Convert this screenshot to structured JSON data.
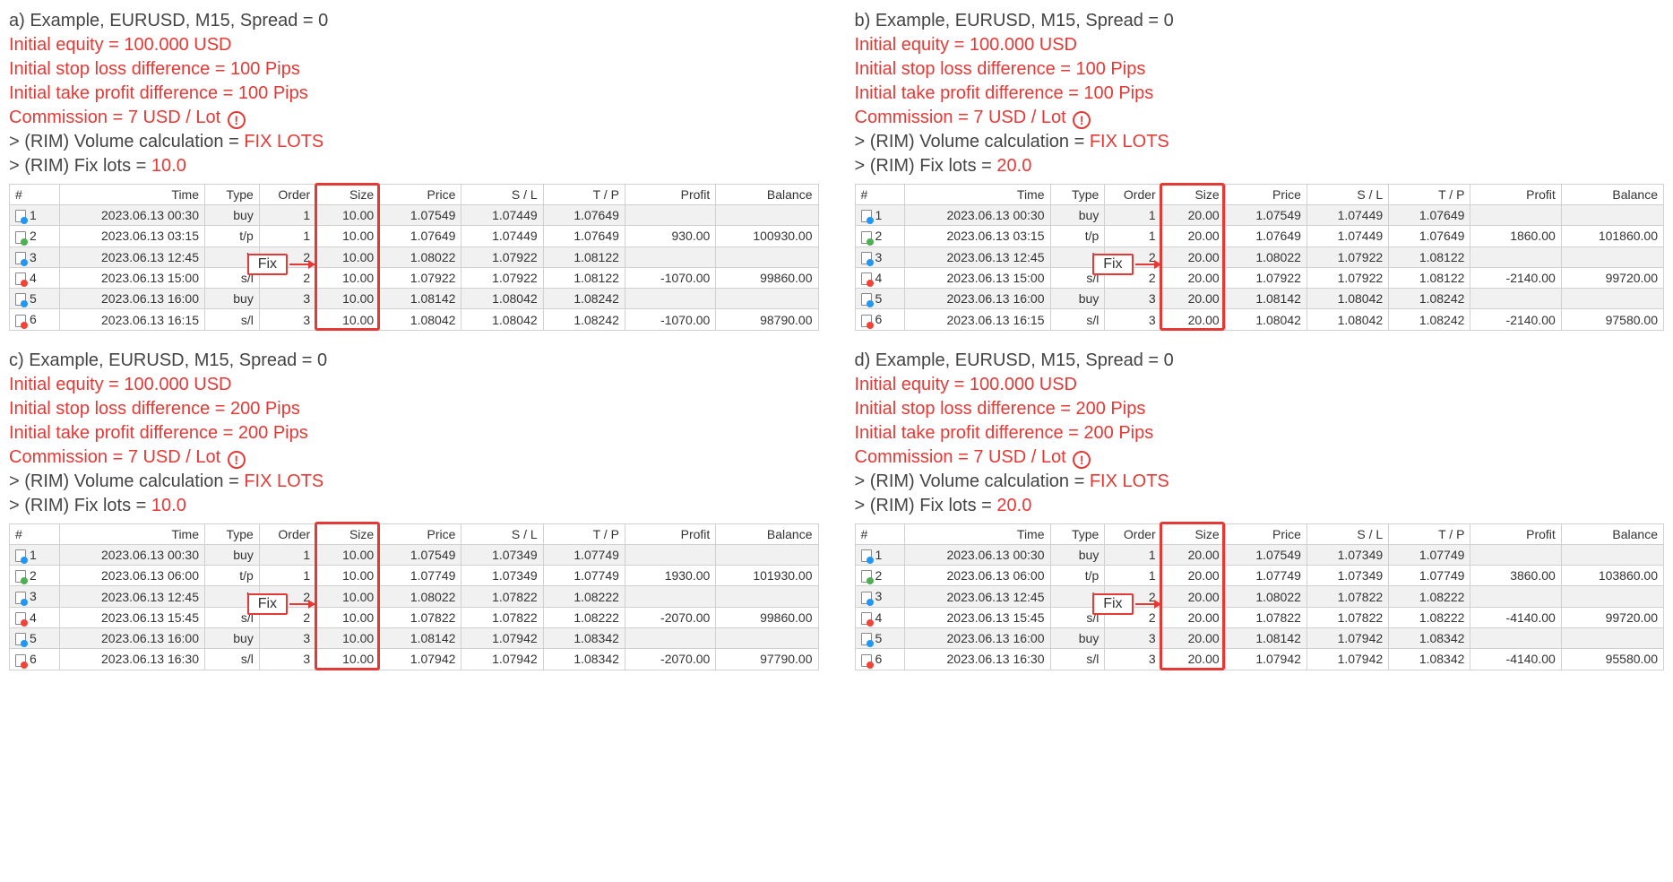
{
  "colors": {
    "red": "#e53935",
    "text": "#444444",
    "row_alt": "#f1f1f1",
    "border": "#d0d0d0"
  },
  "columns": [
    "#",
    "Time",
    "Type",
    "Order",
    "Size",
    "Price",
    "S / L",
    "T / P",
    "Profit",
    "Balance"
  ],
  "fix_label": "Fix",
  "exclaim": "!",
  "highlight_column_index": 4,
  "panels": [
    {
      "id": "a",
      "title": "a) Example, EURUSD, M15, Spread = 0",
      "equity": "Initial equity = 100.000 USD",
      "sl": "Initial stop loss difference = 100 Pips",
      "tp": "Initial take profit difference = 100 Pips",
      "commission_pre": "Commission = 7 USD / Lot ",
      "volcalc_pre": "> (RIM) Volume calculation = ",
      "volcalc_val": "FIX LOTS",
      "fixlots_pre": "> (RIM) Fix lots = ",
      "fixlots_val": "10.0",
      "rows": [
        {
          "n": "1",
          "ic": "buy",
          "time": "2023.06.13 00:30",
          "type": "buy",
          "order": "1",
          "size": "10.00",
          "price": "1.07549",
          "sl": "1.07449",
          "tp": "1.07649",
          "profit": "",
          "bal": ""
        },
        {
          "n": "2",
          "ic": "tp",
          "time": "2023.06.13 03:15",
          "type": "t/p",
          "order": "1",
          "size": "10.00",
          "price": "1.07649",
          "sl": "1.07449",
          "tp": "1.07649",
          "profit": "930.00",
          "bal": "100930.00"
        },
        {
          "n": "3",
          "ic": "buy",
          "time": "2023.06.13 12:45",
          "type": "b",
          "order": "2",
          "size": "10.00",
          "price": "1.08022",
          "sl": "1.07922",
          "tp": "1.08122",
          "profit": "",
          "bal": ""
        },
        {
          "n": "4",
          "ic": "sl",
          "time": "2023.06.13 15:00",
          "type": "s/l",
          "order": "2",
          "size": "10.00",
          "price": "1.07922",
          "sl": "1.07922",
          "tp": "1.08122",
          "profit": "-1070.00",
          "bal": "99860.00"
        },
        {
          "n": "5",
          "ic": "buy",
          "time": "2023.06.13 16:00",
          "type": "buy",
          "order": "3",
          "size": "10.00",
          "price": "1.08142",
          "sl": "1.08042",
          "tp": "1.08242",
          "profit": "",
          "bal": ""
        },
        {
          "n": "6",
          "ic": "sl",
          "time": "2023.06.13 16:15",
          "type": "s/l",
          "order": "3",
          "size": "10.00",
          "price": "1.08042",
          "sl": "1.08042",
          "tp": "1.08242",
          "profit": "-1070.00",
          "bal": "98790.00"
        }
      ]
    },
    {
      "id": "b",
      "title": "b) Example, EURUSD, M15, Spread = 0",
      "equity": "Initial equity = 100.000 USD",
      "sl": "Initial stop loss difference = 100 Pips",
      "tp": "Initial take profit difference = 100 Pips",
      "commission_pre": "Commission = 7 USD / Lot ",
      "volcalc_pre": "> (RIM) Volume calculation = ",
      "volcalc_val": "FIX LOTS",
      "fixlots_pre": "> (RIM) Fix lots = ",
      "fixlots_val": "20.0",
      "rows": [
        {
          "n": "1",
          "ic": "buy",
          "time": "2023.06.13 00:30",
          "type": "buy",
          "order": "1",
          "size": "20.00",
          "price": "1.07549",
          "sl": "1.07449",
          "tp": "1.07649",
          "profit": "",
          "bal": ""
        },
        {
          "n": "2",
          "ic": "tp",
          "time": "2023.06.13 03:15",
          "type": "t/p",
          "order": "1",
          "size": "20.00",
          "price": "1.07649",
          "sl": "1.07449",
          "tp": "1.07649",
          "profit": "1860.00",
          "bal": "101860.00"
        },
        {
          "n": "3",
          "ic": "buy",
          "time": "2023.06.13 12:45",
          "type": "b",
          "order": "2",
          "size": "20.00",
          "price": "1.08022",
          "sl": "1.07922",
          "tp": "1.08122",
          "profit": "",
          "bal": ""
        },
        {
          "n": "4",
          "ic": "sl",
          "time": "2023.06.13 15:00",
          "type": "s/l",
          "order": "2",
          "size": "20.00",
          "price": "1.07922",
          "sl": "1.07922",
          "tp": "1.08122",
          "profit": "-2140.00",
          "bal": "99720.00"
        },
        {
          "n": "5",
          "ic": "buy",
          "time": "2023.06.13 16:00",
          "type": "buy",
          "order": "3",
          "size": "20.00",
          "price": "1.08142",
          "sl": "1.08042",
          "tp": "1.08242",
          "profit": "",
          "bal": ""
        },
        {
          "n": "6",
          "ic": "sl",
          "time": "2023.06.13 16:15",
          "type": "s/l",
          "order": "3",
          "size": "20.00",
          "price": "1.08042",
          "sl": "1.08042",
          "tp": "1.08242",
          "profit": "-2140.00",
          "bal": "97580.00"
        }
      ]
    },
    {
      "id": "c",
      "title": "c) Example, EURUSD, M15, Spread = 0",
      "equity": "Initial equity = 100.000 USD",
      "sl": "Initial stop loss difference = 200 Pips",
      "tp": "Initial take profit difference = 200 Pips",
      "commission_pre": "Commission = 7 USD / Lot ",
      "volcalc_pre": "> (RIM) Volume calculation = ",
      "volcalc_val": "FIX LOTS",
      "fixlots_pre": "> (RIM) Fix lots = ",
      "fixlots_val": "10.0",
      "rows": [
        {
          "n": "1",
          "ic": "buy",
          "time": "2023.06.13 00:30",
          "type": "buy",
          "order": "1",
          "size": "10.00",
          "price": "1.07549",
          "sl": "1.07349",
          "tp": "1.07749",
          "profit": "",
          "bal": ""
        },
        {
          "n": "2",
          "ic": "tp",
          "time": "2023.06.13 06:00",
          "type": "t/p",
          "order": "1",
          "size": "10.00",
          "price": "1.07749",
          "sl": "1.07349",
          "tp": "1.07749",
          "profit": "1930.00",
          "bal": "101930.00"
        },
        {
          "n": "3",
          "ic": "buy",
          "time": "2023.06.13 12:45",
          "type": "b",
          "order": "2",
          "size": "10.00",
          "price": "1.08022",
          "sl": "1.07822",
          "tp": "1.08222",
          "profit": "",
          "bal": ""
        },
        {
          "n": "4",
          "ic": "sl",
          "time": "2023.06.13 15:45",
          "type": "s/l",
          "order": "2",
          "size": "10.00",
          "price": "1.07822",
          "sl": "1.07822",
          "tp": "1.08222",
          "profit": "-2070.00",
          "bal": "99860.00"
        },
        {
          "n": "5",
          "ic": "buy",
          "time": "2023.06.13 16:00",
          "type": "buy",
          "order": "3",
          "size": "10.00",
          "price": "1.08142",
          "sl": "1.07942",
          "tp": "1.08342",
          "profit": "",
          "bal": ""
        },
        {
          "n": "6",
          "ic": "sl",
          "time": "2023.06.13 16:30",
          "type": "s/l",
          "order": "3",
          "size": "10.00",
          "price": "1.07942",
          "sl": "1.07942",
          "tp": "1.08342",
          "profit": "-2070.00",
          "bal": "97790.00"
        }
      ]
    },
    {
      "id": "d",
      "title": "d) Example, EURUSD, M15, Spread = 0",
      "equity": "Initial equity = 100.000 USD",
      "sl": "Initial stop loss difference = 200 Pips",
      "tp": "Initial take profit difference = 200 Pips",
      "commission_pre": "Commission = 7 USD / Lot ",
      "volcalc_pre": "> (RIM) Volume calculation = ",
      "volcalc_val": "FIX LOTS",
      "fixlots_pre": "> (RIM) Fix lots = ",
      "fixlots_val": "20.0",
      "rows": [
        {
          "n": "1",
          "ic": "buy",
          "time": "2023.06.13 00:30",
          "type": "buy",
          "order": "1",
          "size": "20.00",
          "price": "1.07549",
          "sl": "1.07349",
          "tp": "1.07749",
          "profit": "",
          "bal": ""
        },
        {
          "n": "2",
          "ic": "tp",
          "time": "2023.06.13 06:00",
          "type": "t/p",
          "order": "1",
          "size": "20.00",
          "price": "1.07749",
          "sl": "1.07349",
          "tp": "1.07749",
          "profit": "3860.00",
          "bal": "103860.00"
        },
        {
          "n": "3",
          "ic": "buy",
          "time": "2023.06.13 12:45",
          "type": "b",
          "order": "2",
          "size": "20.00",
          "price": "1.08022",
          "sl": "1.07822",
          "tp": "1.08222",
          "profit": "",
          "bal": ""
        },
        {
          "n": "4",
          "ic": "sl",
          "time": "2023.06.13 15:45",
          "type": "s/l",
          "order": "2",
          "size": "20.00",
          "price": "1.07822",
          "sl": "1.07822",
          "tp": "1.08222",
          "profit": "-4140.00",
          "bal": "99720.00"
        },
        {
          "n": "5",
          "ic": "buy",
          "time": "2023.06.13 16:00",
          "type": "buy",
          "order": "3",
          "size": "20.00",
          "price": "1.08142",
          "sl": "1.07942",
          "tp": "1.08342",
          "profit": "",
          "bal": ""
        },
        {
          "n": "6",
          "ic": "sl",
          "time": "2023.06.13 16:30",
          "type": "s/l",
          "order": "3",
          "size": "20.00",
          "price": "1.07942",
          "sl": "1.07942",
          "tp": "1.08342",
          "profit": "-4140.00",
          "bal": "95580.00"
        }
      ]
    }
  ]
}
